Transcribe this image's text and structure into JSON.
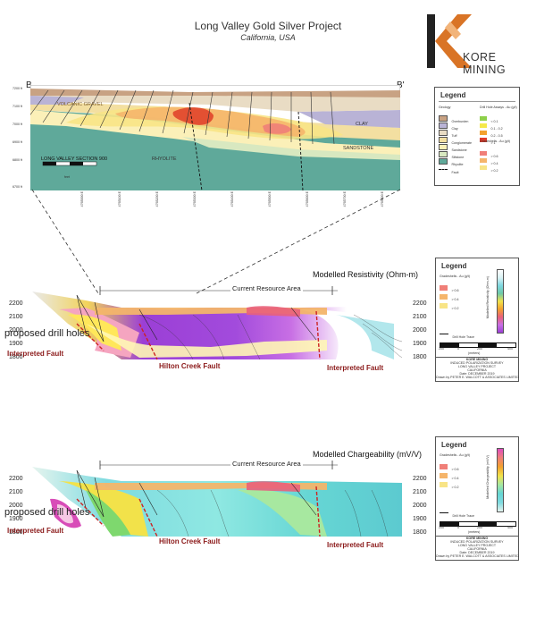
{
  "header": {
    "title": "Long Valley Gold Silver Project",
    "subtitle": "California, USA",
    "logo_text": "KORE MINING"
  },
  "section": {
    "left_label": "B",
    "right_label": "B'",
    "elevations": [
      "7200 ft",
      "7100 ft",
      "7000 ft",
      "6900 ft",
      "6800 ft",
      "6700 ft"
    ],
    "unit_labels": {
      "volcanics": "VOLCANIC GRAVEL",
      "clay": "CLAY",
      "sandstone": "SANDSTONE",
      "rhyolite": "RHYOLITE"
    },
    "inset_label": "LONG VALLEY SECTION 900",
    "scale_unit": "feet",
    "eastings": [
      "4765000 E",
      "4765100 E",
      "4765200 E",
      "4765300 E",
      "4765400 E",
      "4765500 E",
      "4765600 E",
      "4765700 E",
      "4765800 E"
    ]
  },
  "legend1": {
    "title": "Legend",
    "geology_title": "Geology",
    "geology": [
      {
        "label": "Overburden",
        "color": "#c8a283"
      },
      {
        "label": "Clay",
        "color": "#b9b3d6"
      },
      {
        "label": "Tuff",
        "color": "#e9dcc4"
      },
      {
        "label": "Conglomerate",
        "color": "#f3dfa1"
      },
      {
        "label": "Sandstone",
        "color": "#fbf0b8"
      },
      {
        "label": "Siltstone",
        "color": "#d8e8c0"
      },
      {
        "label": "Rhyolite",
        "color": "#5fa99a"
      }
    ],
    "fault_label": "Fault",
    "assays_title": "Drill Hole Assays - Au (g/t)",
    "assays": [
      {
        "label": "< 0.1",
        "color": "#8ed04a"
      },
      {
        "label": "0.1 - 0.2",
        "color": "#f5e94a"
      },
      {
        "label": "0.2 - 0.5",
        "color": "#f3a12e"
      },
      {
        "label": "> 1",
        "color": "#e03a2a"
      }
    ],
    "gradeshells_title": "Gradeshells - Au (g/t)",
    "gradeshells": [
      {
        "label": "> 0.6",
        "color": "#f07f78"
      },
      {
        "label": "> 0.4",
        "color": "#f5b56b"
      },
      {
        "label": "> 0.2",
        "color": "#f8e486"
      }
    ]
  },
  "panel2": {
    "title": "Modelled Resistivity (Ohm-m)",
    "resource_label": "Current Resource Area",
    "proposed_label": "proposed drill holes",
    "fault_left": "Interpreted Fault",
    "fault_mid": "Hilton Creek Fault",
    "fault_right": "Interpreted Fault",
    "elevations_left": [
      "2200",
      "2100",
      "2000",
      "1900",
      "1800"
    ],
    "elevations_right": [
      "2200",
      "2100",
      "2000",
      "1900",
      "1800"
    ],
    "legend_title": "Legend",
    "gradeshells_title": "Gradeshells - Au (g/t)",
    "gradeshells": [
      {
        "label": "> 0.6",
        "color": "#f07f78"
      },
      {
        "label": "> 0.4",
        "color": "#f5b56b"
      },
      {
        "label": "> 0.2",
        "color": "#f8e486"
      }
    ],
    "drill_label": "Drill Hole Trace",
    "colorbar_label": "Modelled Resistivity (Ohm-m)",
    "scale_ticks": [
      "200",
      "0",
      "200",
      "400"
    ],
    "scale_unit": "(meters)",
    "title_block": [
      "KORE MINING",
      "INDUCED POLARIZATION SURVEY",
      "LONG VALLEY PROJECT",
      "CALIFORNIA",
      "Date: DECEMBER 2019",
      "Drawn by PETER E. WALCOTT & ASSOCIATES LIMITED"
    ]
  },
  "panel3": {
    "title": "Modelled Chargeability (mV/V)",
    "resource_label": "Current Resource Area",
    "proposed_label": "proposed drill holes",
    "fault_left": "Interpreted Fault",
    "fault_mid": "Hilton Creek Fault",
    "fault_right": "Interpreted Fault",
    "elevations_left": [
      "2200",
      "2100",
      "2000",
      "1900",
      "1800"
    ],
    "elevations_right": [
      "2200",
      "2100",
      "2000",
      "1900",
      "1800"
    ],
    "legend_title": "Legend",
    "gradeshells_title": "Gradeshells - Au (g/t)",
    "gradeshells": [
      {
        "label": "> 0.6",
        "color": "#f07f78"
      },
      {
        "label": "> 0.4",
        "color": "#f5b56b"
      },
      {
        "label": "> 0.2",
        "color": "#f8e486"
      }
    ],
    "drill_label": "Drill Hole Trace",
    "colorbar_label": "Modelled Chargeability (mV/V)",
    "scale_ticks": [
      "200",
      "0",
      "200",
      "400"
    ],
    "scale_unit": "(meters)",
    "title_block": [
      "KORE MINING",
      "INDUCED POLARIZATION SURVEY",
      "LONG VALLEY PROJECT",
      "CALIFORNIA",
      "Date: DECEMBER 2019",
      "Drawn by PETER E. WALCOTT & ASSOCIATES LIMITED"
    ]
  }
}
